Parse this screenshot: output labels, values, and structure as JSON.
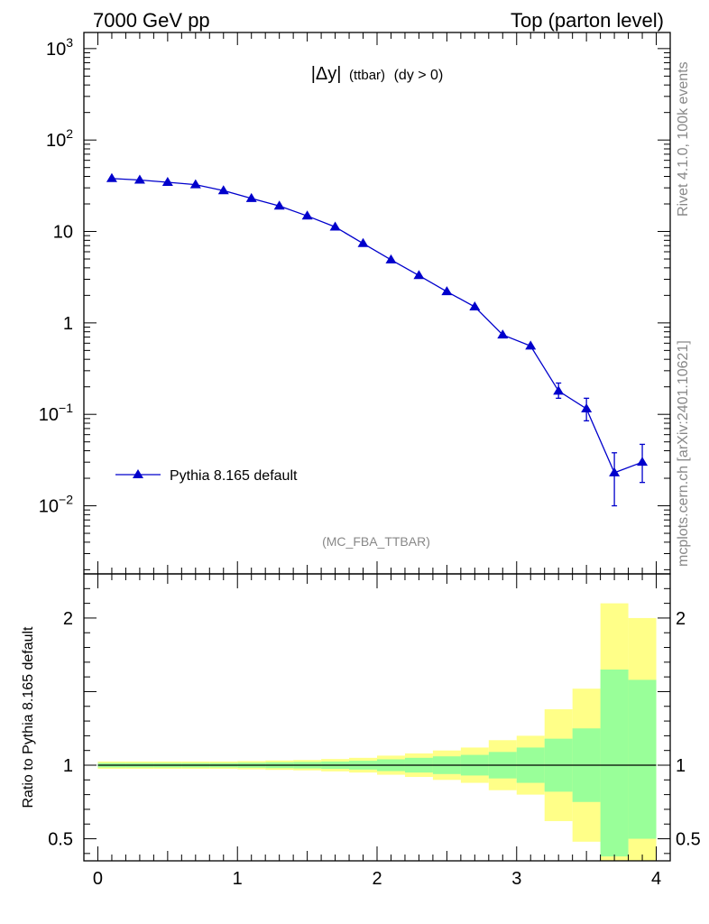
{
  "header": {
    "energy": "7000 GeV pp",
    "process": "Top (parton level)"
  },
  "side_labels": {
    "rivet": "Rivet 4.1.0,  100k events",
    "source": "mcplots.cern.ch [arXiv:2401.10621]"
  },
  "plot_title": {
    "symbol": "|Δy|",
    "subscript": "(ttbar)",
    "condition": "(dy > 0)"
  },
  "analysis_tag": "(MC_FBA_TTBAR)",
  "colors": {
    "series": "#0000cc",
    "band_inner": "#99ff99",
    "band_outer": "#ffff88",
    "secondary_text": "#888888"
  },
  "chart_data": [
    {
      "type": "line",
      "panel": "main",
      "yscale": "log",
      "xlim": [
        -0.1,
        4.1
      ],
      "ylim": [
        0.0018,
        1500
      ],
      "ytick_labels": [
        {
          "value": 1000,
          "label": "10",
          "exp": "3"
        },
        {
          "value": 100,
          "label": "10",
          "exp": "2"
        },
        {
          "value": 10,
          "label": "10",
          "exp": ""
        },
        {
          "value": 1,
          "label": "1",
          "exp": ""
        },
        {
          "value": 0.1,
          "label": "10",
          "exp": "−1"
        },
        {
          "value": 0.01,
          "label": "10",
          "exp": "−2"
        }
      ],
      "legend_position": "lower-left",
      "series": [
        {
          "name": "Pythia 8.165 default",
          "marker": "triangle",
          "x": [
            0.1,
            0.3,
            0.5,
            0.7,
            0.9,
            1.1,
            1.3,
            1.5,
            1.7,
            1.9,
            2.1,
            2.3,
            2.5,
            2.7,
            2.9,
            3.1,
            3.3,
            3.5,
            3.7,
            3.9
          ],
          "y": [
            38,
            36.5,
            34.5,
            32.5,
            28,
            23,
            19,
            14.8,
            11.2,
            7.4,
            4.9,
            3.3,
            2.2,
            1.5,
            0.74,
            0.56,
            0.18,
            0.115,
            0.023,
            0.03
          ],
          "y_err_low": [
            0.5,
            0.5,
            0.5,
            0.5,
            0.4,
            0.4,
            0.3,
            0.3,
            0.2,
            0.15,
            0.1,
            0.08,
            0.06,
            0.05,
            0.03,
            0.03,
            0.03,
            0.03,
            0.013,
            0.012
          ],
          "y_err_high": [
            0.5,
            0.5,
            0.5,
            0.5,
            0.4,
            0.4,
            0.3,
            0.3,
            0.2,
            0.15,
            0.1,
            0.08,
            0.06,
            0.05,
            0.03,
            0.03,
            0.04,
            0.035,
            0.015,
            0.017
          ]
        }
      ]
    },
    {
      "type": "area",
      "panel": "ratio",
      "ylabel": "Ratio to Pythia 8.165 default",
      "xlim": [
        -0.1,
        4.1
      ],
      "ylim": [
        0.35,
        2.3
      ],
      "ytick_labels": [
        {
          "value": 2,
          "label": "2"
        },
        {
          "value": 1,
          "label": "1"
        },
        {
          "value": 0.5,
          "label": "0.5"
        }
      ],
      "xtick_labels": [
        {
          "value": 0,
          "label": "0"
        },
        {
          "value": 1,
          "label": "1"
        },
        {
          "value": 2,
          "label": "2"
        },
        {
          "value": 3,
          "label": "3"
        },
        {
          "value": 4,
          "label": "4"
        }
      ],
      "bin_edges": [
        0,
        0.2,
        0.4,
        0.6,
        0.8,
        1.0,
        1.2,
        1.4,
        1.6,
        1.8,
        2.0,
        2.2,
        2.4,
        2.6,
        2.8,
        3.0,
        3.2,
        3.4,
        3.6,
        3.8,
        4.0
      ],
      "inner_band": {
        "low": [
          0.985,
          0.985,
          0.985,
          0.985,
          0.985,
          0.983,
          0.98,
          0.978,
          0.975,
          0.97,
          0.96,
          0.95,
          0.94,
          0.93,
          0.91,
          0.88,
          0.82,
          0.75,
          0.38,
          0.5
        ],
        "high": [
          1.015,
          1.015,
          1.015,
          1.015,
          1.015,
          1.017,
          1.02,
          1.022,
          1.025,
          1.03,
          1.04,
          1.05,
          1.06,
          1.07,
          1.09,
          1.12,
          1.18,
          1.25,
          1.65,
          1.58
        ]
      },
      "outer_band": {
        "low": [
          0.975,
          0.975,
          0.975,
          0.975,
          0.975,
          0.972,
          0.968,
          0.965,
          0.958,
          0.95,
          0.935,
          0.92,
          0.9,
          0.88,
          0.83,
          0.8,
          0.62,
          0.48,
          0.35,
          0.35
        ],
        "high": [
          1.025,
          1.025,
          1.025,
          1.025,
          1.025,
          1.028,
          1.032,
          1.035,
          1.042,
          1.05,
          1.065,
          1.08,
          1.1,
          1.12,
          1.17,
          1.2,
          1.38,
          1.52,
          2.1,
          2.0
        ]
      },
      "reference_line": 1
    }
  ]
}
